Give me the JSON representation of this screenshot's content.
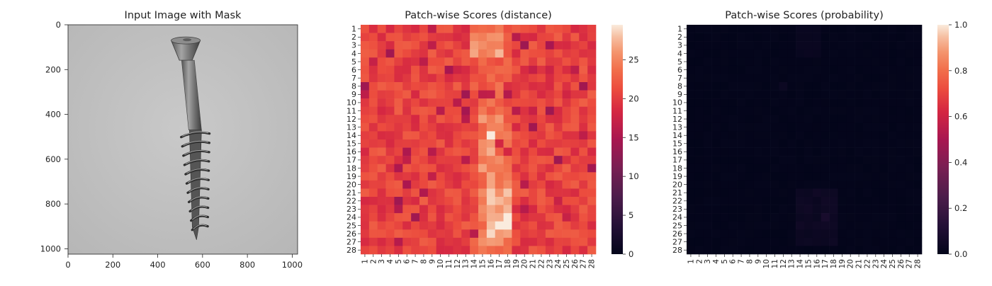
{
  "chart_data": [
    {
      "type": "image",
      "title": "Input Image with Mask",
      "xlim": [
        0,
        1024
      ],
      "ylim": [
        1024,
        0
      ],
      "xticks": [
        0,
        200,
        400,
        600,
        800,
        1000
      ],
      "yticks": [
        0,
        200,
        400,
        600,
        800,
        1000
      ],
      "image": "grayscale photo of a countersunk screw on a light grey background",
      "object": {
        "head_center_x": 525,
        "head_top_y": 70,
        "head_width": 130,
        "shank_x_top": 535,
        "shank_x_bottom": 570,
        "thread_top_y": 470,
        "tip_y": 960
      }
    },
    {
      "type": "heatmap",
      "title": "Patch-wise Scores (distance)",
      "rows": [
        "1",
        "2",
        "3",
        "4",
        "5",
        "6",
        "7",
        "8",
        "9",
        "10",
        "11",
        "12",
        "13",
        "14",
        "15",
        "16",
        "17",
        "18",
        "19",
        "20",
        "21",
        "22",
        "23",
        "24",
        "25",
        "26",
        "27",
        "28"
      ],
      "cols": [
        "1",
        "2",
        "3",
        "4",
        "5",
        "6",
        "7",
        "8",
        "9",
        "10",
        "11",
        "12",
        "13",
        "14",
        "15",
        "16",
        "17",
        "18",
        "19",
        "20",
        "21",
        "22",
        "23",
        "24",
        "25",
        "26",
        "27",
        "28"
      ],
      "colormap": "rocket",
      "colorbar": {
        "min": 0,
        "max": 29.5,
        "ticks": [
          0,
          5,
          10,
          15,
          20,
          25
        ]
      },
      "value_range": [
        15,
        29.5
      ],
      "bright_region": "center columns 14-19, strongest rows 3, 13-14, 23-26"
    },
    {
      "type": "heatmap",
      "title": "Patch-wise Scores (probability)",
      "rows": [
        "1",
        "2",
        "3",
        "4",
        "5",
        "6",
        "7",
        "8",
        "9",
        "10",
        "11",
        "12",
        "13",
        "14",
        "15",
        "16",
        "17",
        "18",
        "19",
        "20",
        "21",
        "22",
        "23",
        "24",
        "25",
        "26",
        "27",
        "28"
      ],
      "cols": [
        "1",
        "2",
        "3",
        "4",
        "5",
        "6",
        "7",
        "8",
        "9",
        "10",
        "11",
        "12",
        "13",
        "14",
        "15",
        "16",
        "17",
        "18",
        "19",
        "20",
        "21",
        "22",
        "23",
        "24",
        "25",
        "26",
        "27",
        "28"
      ],
      "colormap": "rocket",
      "colorbar": {
        "min": 0.0,
        "max": 1.0,
        "ticks": [
          "0.0",
          "0.2",
          "0.4",
          "0.6",
          "0.8",
          "1.0"
        ]
      },
      "value_range": [
        0,
        0.06
      ],
      "bright_region": "faint cells near columns 15-18, rows 23-26"
    }
  ]
}
